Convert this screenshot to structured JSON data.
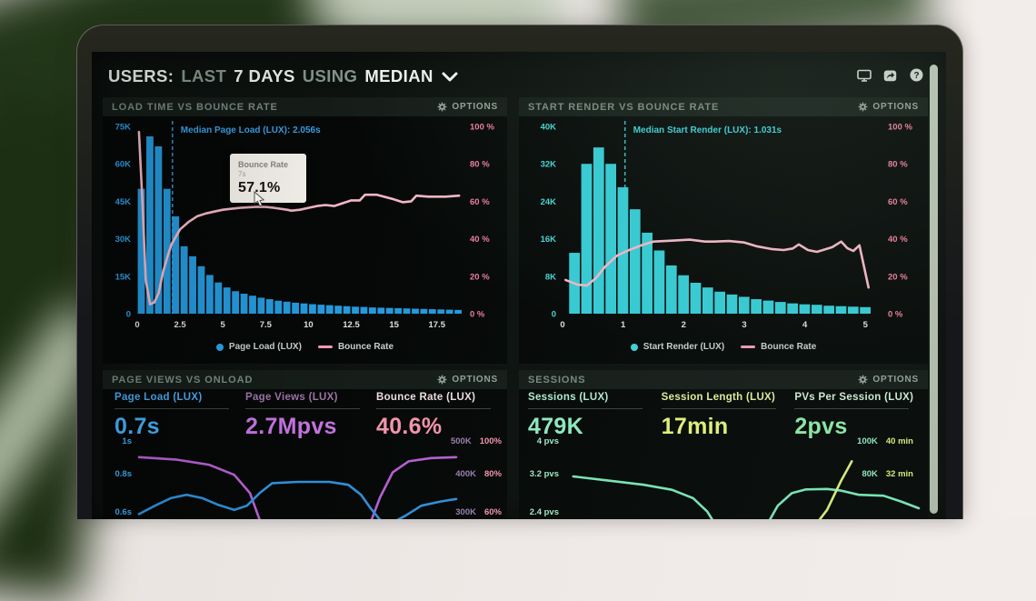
{
  "header": {
    "title_parts": [
      {
        "text": "USERS:",
        "emphasis": true
      },
      {
        "text": "LAST",
        "emphasis": false
      },
      {
        "text": "7 DAYS",
        "emphasis": true
      },
      {
        "text": "USING",
        "emphasis": false
      },
      {
        "text": "MEDIAN",
        "emphasis": true
      }
    ],
    "icons": [
      "display-icon",
      "share-icon",
      "help-icon"
    ]
  },
  "panels": [
    {
      "title": "LOAD TIME VS BOUNCE RATE",
      "options_label": "OPTIONS"
    },
    {
      "title": "START RENDER VS BOUNCE RATE",
      "options_label": "OPTIONS"
    },
    {
      "title": "PAGE VIEWS VS ONLOAD",
      "options_label": "OPTIONS",
      "metrics": [
        {
          "label": "Page Load (LUX)",
          "value": "0.7s",
          "label_color": "#4aa8ee",
          "value_color": "#45aef5"
        },
        {
          "label": "Page Views (LUX)",
          "value": "2.7Mpvs",
          "label_color": "#9d74a8",
          "value_color": "#c472df"
        },
        {
          "label": "Bounce Rate (LUX)",
          "value": "40.6%",
          "label_color": "#eedde2",
          "value_color": "#f493ad"
        }
      ]
    },
    {
      "title": "SESSIONS",
      "options_label": "OPTIONS",
      "metrics": [
        {
          "label": "Sessions (LUX)",
          "value": "479K",
          "label_color": "#b2ecd2",
          "value_color": "#8fe9c1"
        },
        {
          "label": "Session Length (LUX)",
          "value": "17min",
          "label_color": "#dff09c",
          "value_color": "#e2f27d"
        },
        {
          "label": "PVs Per Session (LUX)",
          "value": "2pvs",
          "label_color": "#cdeed6",
          "value_color": "#8beaa6"
        }
      ]
    }
  ],
  "chart_data": [
    {
      "type": "bar",
      "title": "LOAD TIME VS BOUNCE RATE",
      "x": {
        "domain": [
          0,
          19
        ],
        "unit": "seconds",
        "ticks": [
          0,
          2.5,
          5,
          7.5,
          10,
          12.5,
          15,
          17.5
        ]
      },
      "y_left": {
        "max": 75,
        "unit": "K users",
        "ticks": [
          "75K",
          "60K",
          "45K",
          "30K",
          "15K",
          "0"
        ],
        "color": "#2d9fe8"
      },
      "y_right": {
        "max": 100,
        "unit": "%",
        "ticks": [
          "100 %",
          "80 %",
          "60 %",
          "40 %",
          "20 %",
          "0 %"
        ],
        "color": "#ee7d9d"
      },
      "bars": {
        "name": "Page Load (LUX)",
        "color": "#2599dc",
        "bin_start": 0,
        "bin_width": 0.5,
        "values_k": [
          50,
          71,
          67,
          50,
          39,
          27,
          23,
          19,
          15.5,
          12.5,
          10.5,
          9,
          8,
          7.2,
          6.4,
          5.8,
          5.2,
          4.8,
          4.4,
          4.1,
          3.8,
          3.6,
          3.4,
          3.2,
          3.0,
          2.8,
          2.7,
          2.5,
          2.4,
          2.3,
          2.2,
          2.1,
          2.0,
          1.9,
          1.8,
          1.7,
          1.6,
          1.5
        ]
      },
      "line": {
        "name": "Bounce Rate",
        "color": "#f4b7c6",
        "points": [
          [
            0.1,
            97
          ],
          [
            0.3,
            60
          ],
          [
            0.5,
            18
          ],
          [
            0.75,
            5
          ],
          [
            1.0,
            6
          ],
          [
            1.25,
            11
          ],
          [
            1.5,
            22
          ],
          [
            1.75,
            30
          ],
          [
            2.0,
            37
          ],
          [
            2.5,
            45
          ],
          [
            3.0,
            49
          ],
          [
            3.5,
            52
          ],
          [
            4.0,
            53.5
          ],
          [
            4.5,
            54.5
          ],
          [
            5.0,
            55.5
          ],
          [
            6.0,
            56.5
          ],
          [
            7.0,
            57.1
          ],
          [
            7.5,
            57
          ],
          [
            8.0,
            56.5
          ],
          [
            8.75,
            55.5
          ],
          [
            9.0,
            55
          ],
          [
            9.5,
            55.5
          ],
          [
            10.0,
            56.5
          ],
          [
            10.5,
            57.5
          ],
          [
            11.0,
            58
          ],
          [
            11.5,
            57.5
          ],
          [
            12.0,
            59
          ],
          [
            12.5,
            60.5
          ],
          [
            13.0,
            60.5
          ],
          [
            13.3,
            63.5
          ],
          [
            14.0,
            63.5
          ],
          [
            14.4,
            62.5
          ],
          [
            15.0,
            61
          ],
          [
            15.5,
            59.5
          ],
          [
            16.0,
            60
          ],
          [
            16.3,
            63
          ],
          [
            17.0,
            62.5
          ],
          [
            18.0,
            62.5
          ],
          [
            18.8,
            63
          ]
        ]
      },
      "annotation": {
        "x": 2.056,
        "label": "Median Page Load (LUX): 2.056s",
        "color": "#3aa0e8"
      },
      "tooltip": {
        "title": "Bounce Rate",
        "sub": "7s",
        "value": "57.1%"
      },
      "legend": [
        {
          "label": "Page Load (LUX)",
          "marker": "dot",
          "color": "#2d9fe8"
        },
        {
          "label": "Bounce Rate",
          "marker": "line",
          "color": "#f09ab5"
        }
      ]
    },
    {
      "type": "bar",
      "title": "START RENDER VS BOUNCE RATE",
      "x": {
        "domain": [
          0,
          5.25
        ],
        "unit": "seconds",
        "ticks": [
          0,
          1,
          2,
          3,
          4,
          5
        ]
      },
      "y_left": {
        "max": 40,
        "unit": "K users",
        "ticks": [
          "40K",
          "32K",
          "24K",
          "16K",
          "8K",
          "0"
        ],
        "color": "#45d6d6"
      },
      "y_right": {
        "max": 100,
        "unit": "%",
        "ticks": [
          "100 %",
          "80 %",
          "60 %",
          "40 %",
          "20 %",
          "0 %"
        ],
        "color": "#ee7d9d"
      },
      "bars": {
        "name": "Start Render (LUX)",
        "color": "#35ccd6",
        "bin_start": 0.1,
        "bin_width": 0.2,
        "values_k": [
          13,
          32,
          35.5,
          32,
          27,
          22.3,
          17.3,
          13.5,
          10.3,
          8.2,
          6.6,
          5.6,
          4.7,
          4.1,
          3.6,
          3.1,
          2.8,
          2.5,
          2.2,
          2.0,
          1.9,
          1.7,
          1.6,
          1.5,
          1.4
        ]
      },
      "line": {
        "name": "Bounce Rate",
        "color": "#f4b7c6",
        "points": [
          [
            0.05,
            18
          ],
          [
            0.25,
            15.5
          ],
          [
            0.4,
            15
          ],
          [
            0.55,
            19
          ],
          [
            0.7,
            25
          ],
          [
            0.9,
            31
          ],
          [
            1.1,
            34
          ],
          [
            1.3,
            36.5
          ],
          [
            1.5,
            38.5
          ],
          [
            1.8,
            39
          ],
          [
            2.1,
            39.5
          ],
          [
            2.35,
            38.5
          ],
          [
            2.5,
            38.5
          ],
          [
            2.75,
            38.8
          ],
          [
            3.0,
            38
          ],
          [
            3.2,
            36
          ],
          [
            3.45,
            34.5
          ],
          [
            3.65,
            34
          ],
          [
            3.8,
            34.8
          ],
          [
            3.9,
            37
          ],
          [
            4.05,
            34
          ],
          [
            4.2,
            33
          ],
          [
            4.45,
            35.5
          ],
          [
            4.6,
            38.5
          ],
          [
            4.7,
            35
          ],
          [
            4.8,
            33.5
          ],
          [
            4.9,
            36.5
          ],
          [
            5.05,
            14
          ]
        ]
      },
      "annotation": {
        "x": 1.031,
        "label": "Median Start Render (LUX): 1.031s",
        "color": "#3ecfd8"
      },
      "legend": [
        {
          "label": "Start Render (LUX)",
          "marker": "dot",
          "color": "#3ed3da"
        },
        {
          "label": "Bounce Rate",
          "marker": "line",
          "color": "#f09ab5"
        }
      ]
    },
    {
      "type": "line",
      "title": "PAGE VIEWS VS ONLOAD",
      "y_left": {
        "ticks": [
          "1s",
          "0.8s",
          "0.6s"
        ],
        "color": "#3fa9f0"
      },
      "y_right_rows": [
        [
          "500K",
          "100%"
        ],
        [
          "400K",
          "80%"
        ],
        [
          "300K",
          "60%"
        ]
      ],
      "y_right_colors": [
        "#9a7fae",
        "#f295ae"
      ],
      "series": [
        {
          "name": "Page Views (LUX)",
          "color": "#b55fd0",
          "points_norm": [
            [
              0,
              0.27
            ],
            [
              0.12,
              0.3
            ],
            [
              0.22,
              0.36
            ],
            [
              0.3,
              0.48
            ],
            [
              0.35,
              0.7
            ],
            [
              0.39,
              1.12
            ],
            [
              0.72,
              1.15
            ],
            [
              0.76,
              0.75
            ],
            [
              0.8,
              0.45
            ],
            [
              0.85,
              0.32
            ],
            [
              0.92,
              0.28
            ],
            [
              1.0,
              0.27
            ]
          ]
        },
        {
          "name": "Page Load (LUX)",
          "color": "#2f8fd8",
          "points_norm": [
            [
              0,
              0.95
            ],
            [
              0.05,
              0.85
            ],
            [
              0.1,
              0.76
            ],
            [
              0.15,
              0.72
            ],
            [
              0.2,
              0.76
            ],
            [
              0.25,
              0.84
            ],
            [
              0.3,
              0.9
            ],
            [
              0.34,
              0.85
            ],
            [
              0.38,
              0.7
            ],
            [
              0.42,
              0.58
            ],
            [
              0.5,
              0.565
            ],
            [
              0.6,
              0.565
            ],
            [
              0.66,
              0.6
            ],
            [
              0.7,
              0.72
            ],
            [
              0.73,
              0.88
            ],
            [
              0.76,
              1.02
            ],
            [
              0.8,
              1.05
            ],
            [
              0.84,
              0.97
            ],
            [
              0.89,
              0.85
            ],
            [
              0.95,
              0.8
            ],
            [
              1.0,
              0.77
            ]
          ]
        }
      ]
    },
    {
      "type": "line",
      "title": "SESSIONS",
      "y_left": {
        "ticks": [
          "4 pvs",
          "3.2 pvs",
          "2.4 pvs"
        ],
        "color": "#9fe8c4"
      },
      "y_right_rows": [
        [
          "100K",
          "40 min"
        ],
        [
          "80K",
          "32 min"
        ]
      ],
      "y_right_colors": [
        "#8fe8c0",
        "#d9ec7e"
      ],
      "series": [
        {
          "name": "PVs Per Session (LUX)",
          "color": "#79e6b8",
          "points_norm": [
            [
              0.02,
              0.5
            ],
            [
              0.12,
              0.55
            ],
            [
              0.22,
              0.6
            ],
            [
              0.3,
              0.66
            ],
            [
              0.36,
              0.76
            ],
            [
              0.4,
              0.92
            ],
            [
              0.43,
              1.12
            ],
            [
              0.56,
              1.15
            ],
            [
              0.6,
              0.85
            ],
            [
              0.64,
              0.7
            ],
            [
              0.68,
              0.655
            ],
            [
              0.74,
              0.65
            ],
            [
              0.78,
              0.67
            ],
            [
              0.83,
              0.72
            ],
            [
              0.9,
              0.73
            ],
            [
              0.95,
              0.8
            ],
            [
              1.0,
              0.88
            ]
          ]
        },
        {
          "name": "Session Length (LUX)",
          "color": "#d9ec7e",
          "points_norm": [
            [
              0.7,
              1.12
            ],
            [
              0.74,
              0.9
            ],
            [
              0.78,
              0.55
            ],
            [
              0.81,
              0.32
            ]
          ]
        }
      ]
    }
  ]
}
